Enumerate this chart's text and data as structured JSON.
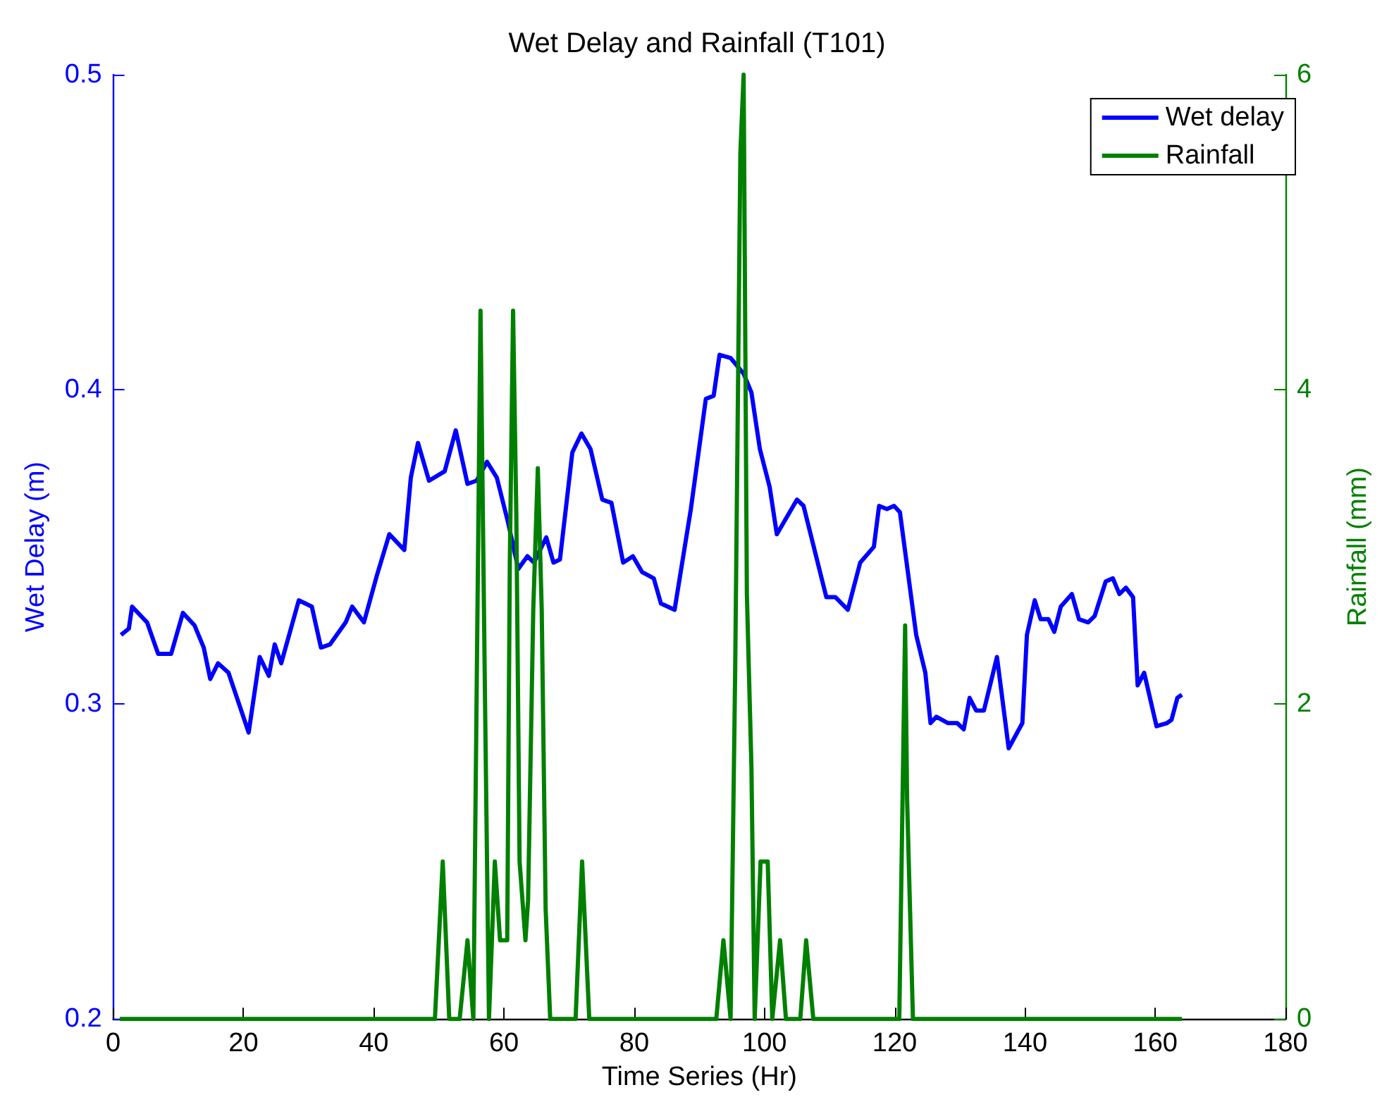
{
  "chart_data": {
    "type": "line",
    "title": "Wet Delay and Rainfall (T101)",
    "xlabel": "Time Series (Hr)",
    "ylabel": "Wet Delay (m)",
    "y2label": "Rainfall (mm)",
    "xlim": [
      0,
      180
    ],
    "xticks": [
      0,
      20,
      40,
      60,
      80,
      100,
      120,
      140,
      160,
      180
    ],
    "ylim": [
      0.2,
      0.5
    ],
    "yticks": [
      0.2,
      0.3,
      0.4,
      0.5
    ],
    "y2lim": [
      0,
      6
    ],
    "y2ticks": [
      0,
      2,
      4,
      6
    ],
    "legend": "top right",
    "grid": false,
    "marker": "none",
    "line_style": "solid",
    "series": [
      {
        "name": "Wet delay",
        "color": "#0000ff",
        "x": [
          1.2,
          2.4,
          2.9,
          5.2,
          6.9,
          8.9,
          10.7,
          12.5,
          13.9,
          14.9,
          16.1,
          17.7,
          20.8,
          22.5,
          23.9,
          24.8,
          25.8,
          28.5,
          30.5,
          31.9,
          33.3,
          35.7,
          36.7,
          38.5,
          40.5,
          42.4,
          44.7,
          45.7,
          46.8,
          48.5,
          50.9,
          52.6,
          54.4,
          55.8,
          57.4,
          58.9,
          60.6,
          62.2,
          63.6,
          64.6,
          66.5,
          67.6,
          68.6,
          70.5,
          71.9,
          73.3,
          75.1,
          76.5,
          78.3,
          79.8,
          81.2,
          83.0,
          84.1,
          86.2,
          88.7,
          91.0,
          92.2,
          93.1,
          94.8,
          96.8,
          98.0,
          99.3,
          100.8,
          101.9,
          105.0,
          106.0,
          109.5,
          110.9,
          112.8,
          114.7,
          116.8,
          117.6,
          118.8,
          119.9,
          120.8,
          123.3,
          124.7,
          125.5,
          126.4,
          128.2,
          129.6,
          130.6,
          131.5,
          132.5,
          133.7,
          135.7,
          137.5,
          139.6,
          140.3,
          141.5,
          142.4,
          143.6,
          144.5,
          145.5,
          147.2,
          148.3,
          149.7,
          150.7,
          152.4,
          153.5,
          154.5,
          155.5,
          156.6,
          157.3,
          158.3,
          160.2,
          161.8,
          162.5,
          163.4,
          164.1
        ],
        "values": [
          0.322,
          0.324,
          0.331,
          0.326,
          0.316,
          0.316,
          0.329,
          0.325,
          0.318,
          0.308,
          0.313,
          0.31,
          0.291,
          0.315,
          0.309,
          0.319,
          0.313,
          0.333,
          0.331,
          0.318,
          0.319,
          0.326,
          0.331,
          0.326,
          0.341,
          0.354,
          0.349,
          0.372,
          0.383,
          0.371,
          0.374,
          0.387,
          0.37,
          0.371,
          0.377,
          0.372,
          0.358,
          0.343,
          0.347,
          0.345,
          0.353,
          0.345,
          0.346,
          0.38,
          0.386,
          0.381,
          0.365,
          0.364,
          0.345,
          0.347,
          0.342,
          0.34,
          0.332,
          0.33,
          0.362,
          0.397,
          0.398,
          0.411,
          0.41,
          0.405,
          0.399,
          0.381,
          0.369,
          0.354,
          0.365,
          0.363,
          0.334,
          0.334,
          0.33,
          0.345,
          0.35,
          0.363,
          0.362,
          0.363,
          0.361,
          0.322,
          0.31,
          0.294,
          0.296,
          0.294,
          0.294,
          0.292,
          0.302,
          0.298,
          0.298,
          0.315,
          0.286,
          0.294,
          0.322,
          0.333,
          0.327,
          0.327,
          0.323,
          0.331,
          0.335,
          0.327,
          0.326,
          0.328,
          0.339,
          0.34,
          0.335,
          0.337,
          0.334,
          0.306,
          0.31,
          0.293,
          0.294,
          0.295,
          0.302,
          0.303
        ]
      },
      {
        "name": "Rainfall",
        "color": "#008000",
        "axis": "y2",
        "x": [
          1,
          49.4,
          50.6,
          51.6,
          53.2,
          54.4,
          55.3,
          56.4,
          57.1,
          57.7,
          58.6,
          59.4,
          60.5,
          60.9,
          61.4,
          61.9,
          62.4,
          63.3,
          63.7,
          64.5,
          65.2,
          65.8,
          66.4,
          67.1,
          71.0,
          72.0,
          73.1,
          92.6,
          93.7,
          94.8,
          95.5,
          96.3,
          96.8,
          97.3,
          98.0,
          98.5,
          99.4,
          100.5,
          101.2,
          102.4,
          103.3,
          105.5,
          106.4,
          107.5,
          120.7,
          121.6,
          121.9,
          122.8,
          164.1
        ],
        "values": [
          0,
          0,
          1,
          0,
          0,
          0.5,
          0,
          4.5,
          2,
          0,
          1,
          0.5,
          0.5,
          2.9,
          4.5,
          3.2,
          1,
          0.5,
          0.75,
          2.6,
          3.5,
          2.6,
          0.7,
          0,
          0,
          1,
          0,
          0,
          0.5,
          0,
          2.2,
          5.5,
          6,
          2.7,
          1.6,
          0,
          1,
          1,
          0,
          0.5,
          0,
          0,
          0.5,
          0,
          0,
          2.5,
          1.4,
          0,
          0
        ]
      }
    ]
  }
}
